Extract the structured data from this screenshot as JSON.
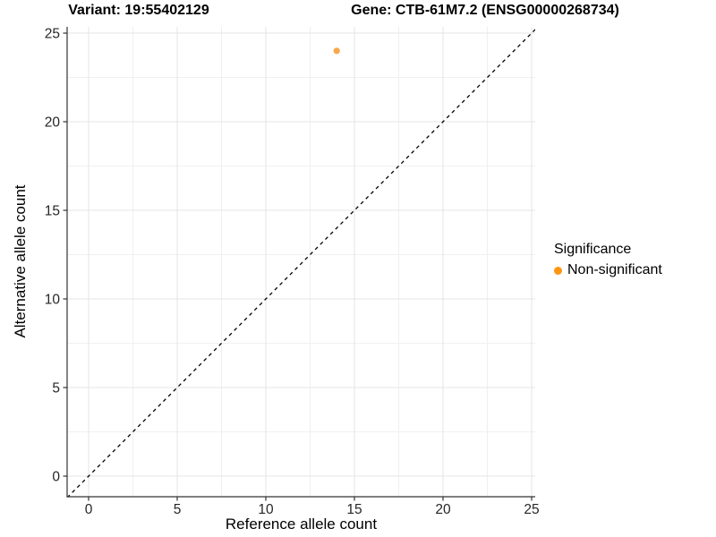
{
  "titles": {
    "variant": "Variant: 19:55402129",
    "gene": "Gene: CTB-61M7.2 (ENSG00000268734)"
  },
  "chart_data": {
    "type": "scatter",
    "title_left": "Variant: 19:55402129",
    "title_right": "Gene: CTB-61M7.2 (ENSG00000268734)",
    "xlabel": "Reference allele count",
    "ylabel": "Alternative allele count",
    "xlim": [
      -1.2,
      25.2
    ],
    "ylim": [
      -1.2,
      25.35
    ],
    "x_ticks": [
      0,
      5,
      10,
      15,
      20,
      25
    ],
    "y_ticks": [
      0,
      5,
      10,
      15,
      20,
      25
    ],
    "x_minor_ticks": [
      2.5,
      7.5,
      12.5,
      17.5,
      22.5
    ],
    "y_minor_ticks": [
      2.5,
      7.5,
      12.5,
      17.5,
      22.5
    ],
    "grid": true,
    "points": [
      {
        "x": 14,
        "y": 24,
        "series": "Non-significant"
      }
    ],
    "reference_line": {
      "type": "identity",
      "style": "dashed"
    },
    "legend": {
      "title": "Significance",
      "position": "right",
      "entries": [
        {
          "label": "Non-significant",
          "color": "#FF9612"
        }
      ]
    }
  },
  "colors": {
    "point": "#F9A64B",
    "legend_dot": "#FF9612",
    "grid_major": "#E4E4E4",
    "grid_minor": "#F0F0F0",
    "axis_line": "#333333",
    "tick_text": "#262626",
    "diagonal": "#000000",
    "background": "#FFFFFF"
  }
}
